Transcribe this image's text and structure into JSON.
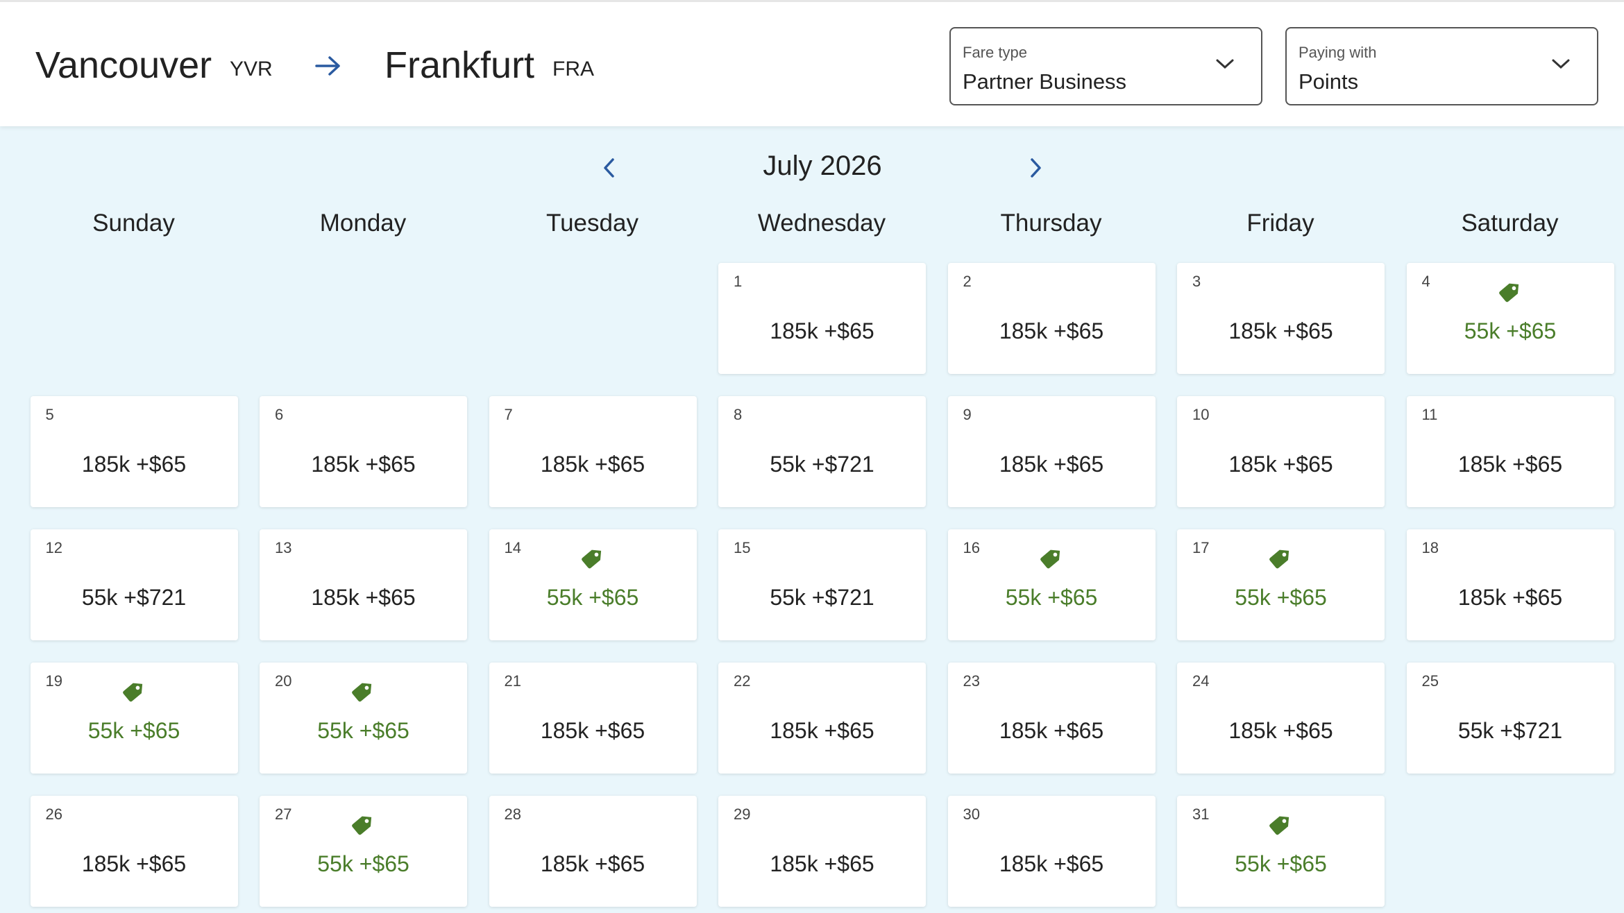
{
  "header": {
    "origin": {
      "city": "Vancouver",
      "code": "YVR"
    },
    "destination": {
      "city": "Frankfurt",
      "code": "FRA"
    },
    "fare_type": {
      "label": "Fare type",
      "value": "Partner Business"
    },
    "paying_with": {
      "label": "Paying with",
      "value": "Points"
    }
  },
  "calendar": {
    "month": "July 2026",
    "weekdays": [
      "Sunday",
      "Monday",
      "Tuesday",
      "Wednesday",
      "Thursday",
      "Friday",
      "Saturday"
    ],
    "days": [
      {
        "day": 1,
        "price": "185k +$65",
        "deal": false
      },
      {
        "day": 2,
        "price": "185k +$65",
        "deal": false
      },
      {
        "day": 3,
        "price": "185k +$65",
        "deal": false
      },
      {
        "day": 4,
        "price": "55k +$65",
        "deal": true
      },
      {
        "day": 5,
        "price": "185k +$65",
        "deal": false
      },
      {
        "day": 6,
        "price": "185k +$65",
        "deal": false
      },
      {
        "day": 7,
        "price": "185k +$65",
        "deal": false
      },
      {
        "day": 8,
        "price": "55k +$721",
        "deal": false
      },
      {
        "day": 9,
        "price": "185k +$65",
        "deal": false
      },
      {
        "day": 10,
        "price": "185k +$65",
        "deal": false
      },
      {
        "day": 11,
        "price": "185k +$65",
        "deal": false
      },
      {
        "day": 12,
        "price": "55k +$721",
        "deal": false
      },
      {
        "day": 13,
        "price": "185k +$65",
        "deal": false
      },
      {
        "day": 14,
        "price": "55k +$65",
        "deal": true
      },
      {
        "day": 15,
        "price": "55k +$721",
        "deal": false
      },
      {
        "day": 16,
        "price": "55k +$65",
        "deal": true
      },
      {
        "day": 17,
        "price": "55k +$65",
        "deal": true
      },
      {
        "day": 18,
        "price": "185k +$65",
        "deal": false
      },
      {
        "day": 19,
        "price": "55k +$65",
        "deal": true
      },
      {
        "day": 20,
        "price": "55k +$65",
        "deal": true
      },
      {
        "day": 21,
        "price": "185k +$65",
        "deal": false
      },
      {
        "day": 22,
        "price": "185k +$65",
        "deal": false
      },
      {
        "day": 23,
        "price": "185k +$65",
        "deal": false
      },
      {
        "day": 24,
        "price": "185k +$65",
        "deal": false
      },
      {
        "day": 25,
        "price": "55k +$721",
        "deal": false
      },
      {
        "day": 26,
        "price": "185k +$65",
        "deal": false
      },
      {
        "day": 27,
        "price": "55k +$65",
        "deal": true
      },
      {
        "day": 28,
        "price": "185k +$65",
        "deal": false
      },
      {
        "day": 29,
        "price": "185k +$65",
        "deal": false
      },
      {
        "day": 30,
        "price": "185k +$65",
        "deal": false
      },
      {
        "day": 31,
        "price": "55k +$65",
        "deal": true
      }
    ]
  }
}
